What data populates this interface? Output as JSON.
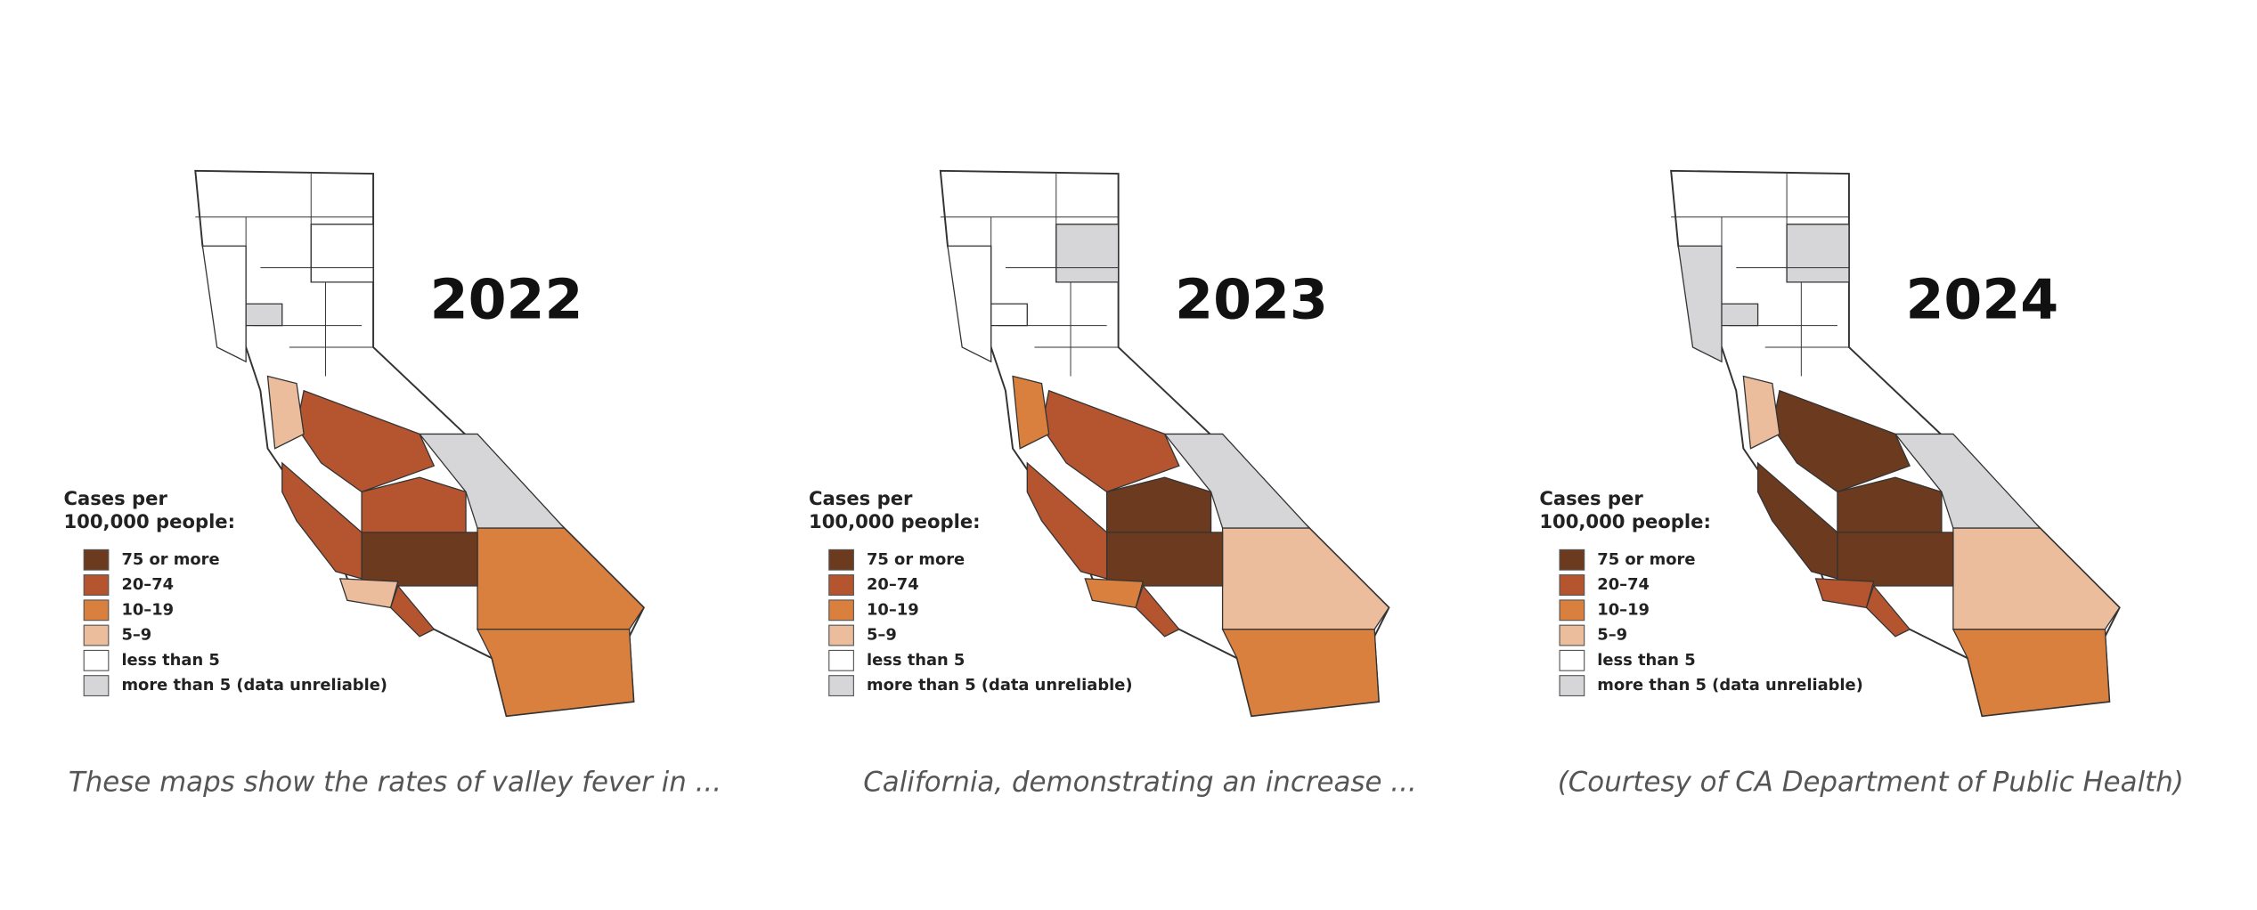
{
  "panels": [
    {
      "year": "2022",
      "legend": {
        "title": "Cases per 100,000 people:",
        "items": [
          {
            "label": "75 or more",
            "color": "#6b3a1f"
          },
          {
            "label": "20–74",
            "color": "#b5552f"
          },
          {
            "label": "10–19",
            "color": "#d9803f"
          },
          {
            "label": "5–9",
            "color": "#ecbd9c"
          },
          {
            "label": "less than 5",
            "color": "#ffffff"
          },
          {
            "label": "more than 5 (data unreliable)",
            "color": "#d6d6d8"
          }
        ]
      },
      "caption": "These maps show the rates of valley fever in ..."
    },
    {
      "year": "2023",
      "legend": {
        "title": "Cases per 100,000 people:",
        "items": [
          {
            "label": "75 or more",
            "color": "#6b3a1f"
          },
          {
            "label": "20–74",
            "color": "#b5552f"
          },
          {
            "label": "10–19",
            "color": "#d9803f"
          },
          {
            "label": "5–9",
            "color": "#ecbd9c"
          },
          {
            "label": "less than 5",
            "color": "#ffffff"
          },
          {
            "label": "more than 5 (data unreliable)",
            "color": "#d6d6d8"
          }
        ]
      },
      "caption": "California, demonstrating an increase  ..."
    },
    {
      "year": "2024",
      "legend": {
        "title": "Cases per 100,000 people:",
        "items": [
          {
            "label": "75 or more",
            "color": "#6b3a1f"
          },
          {
            "label": "20–74",
            "color": "#b5552f"
          },
          {
            "label": "10–19",
            "color": "#d9803f"
          },
          {
            "label": "5–9",
            "color": "#ecbd9c"
          },
          {
            "label": "less than 5",
            "color": "#ffffff"
          },
          {
            "label": "more than 5 (data unreliable)",
            "color": "#d6d6d8"
          }
        ]
      },
      "caption": "(Courtesy of CA Department of Public Health)"
    }
  ]
}
